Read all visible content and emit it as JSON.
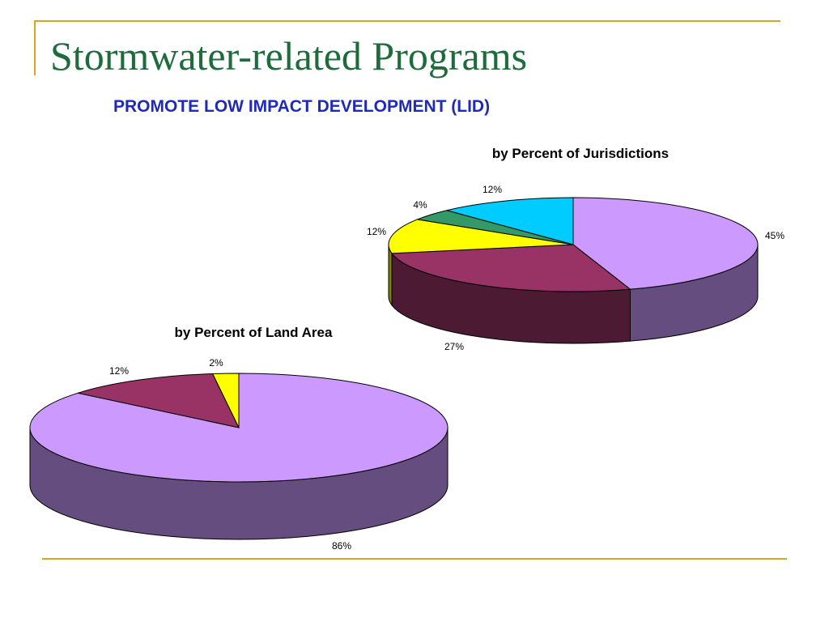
{
  "slide": {
    "title": "Stormwater-related Programs",
    "subtitle": "PROMOTE LOW IMPACT DEVELOPMENT (LID)"
  },
  "colors": {
    "frame": "#d9a621",
    "title": "#1e6b3c",
    "subtitle": "#1f2bb8"
  },
  "chart_data": [
    {
      "type": "pie",
      "style": "3d",
      "title": "by Percent of Jurisdictions",
      "slices": [
        {
          "value": 45,
          "label": "45%",
          "color": "#cc99ff"
        },
        {
          "value": 27,
          "label": "27%",
          "color": "#993366"
        },
        {
          "value": 12,
          "label": "12%",
          "color": "#ffff00"
        },
        {
          "value": 4,
          "label": "4%",
          "color": "#339966"
        },
        {
          "value": 12,
          "label": "12%",
          "color": "#00ccff"
        }
      ]
    },
    {
      "type": "pie",
      "style": "3d",
      "title": "by Percent of Land Area",
      "slices": [
        {
          "value": 86,
          "label": "86%",
          "color": "#cc99ff"
        },
        {
          "value": 12,
          "label": "12%",
          "color": "#993366"
        },
        {
          "value": 2,
          "label": "2%",
          "color": "#ffff00"
        }
      ]
    }
  ]
}
